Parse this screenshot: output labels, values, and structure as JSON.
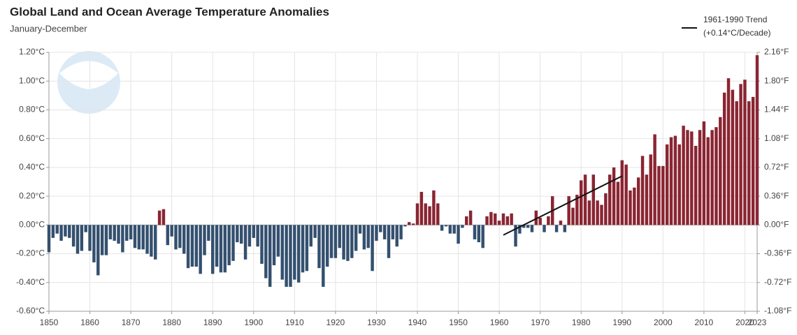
{
  "chart_data": {
    "type": "bar",
    "title": "Global Land and Ocean Average Temperature Anomalies",
    "subtitle": "January-December",
    "x": [
      1850,
      1851,
      1852,
      1853,
      1854,
      1855,
      1856,
      1857,
      1858,
      1859,
      1860,
      1861,
      1862,
      1863,
      1864,
      1865,
      1866,
      1867,
      1868,
      1869,
      1870,
      1871,
      1872,
      1873,
      1874,
      1875,
      1876,
      1877,
      1878,
      1879,
      1880,
      1881,
      1882,
      1883,
      1884,
      1885,
      1886,
      1887,
      1888,
      1889,
      1890,
      1891,
      1892,
      1893,
      1894,
      1895,
      1896,
      1897,
      1898,
      1899,
      1900,
      1901,
      1902,
      1903,
      1904,
      1905,
      1906,
      1907,
      1908,
      1909,
      1910,
      1911,
      1912,
      1913,
      1914,
      1915,
      1916,
      1917,
      1918,
      1919,
      1920,
      1921,
      1922,
      1923,
      1924,
      1925,
      1926,
      1927,
      1928,
      1929,
      1930,
      1931,
      1932,
      1933,
      1934,
      1935,
      1936,
      1937,
      1938,
      1939,
      1940,
      1941,
      1942,
      1943,
      1944,
      1945,
      1946,
      1947,
      1948,
      1949,
      1950,
      1951,
      1952,
      1953,
      1954,
      1955,
      1956,
      1957,
      1958,
      1959,
      1960,
      1961,
      1962,
      1963,
      1964,
      1965,
      1966,
      1967,
      1968,
      1969,
      1970,
      1971,
      1972,
      1973,
      1974,
      1975,
      1976,
      1977,
      1978,
      1979,
      1980,
      1981,
      1982,
      1983,
      1984,
      1985,
      1986,
      1987,
      1988,
      1989,
      1990,
      1991,
      1992,
      1993,
      1994,
      1995,
      1996,
      1997,
      1998,
      1999,
      2000,
      2001,
      2002,
      2003,
      2004,
      2005,
      2006,
      2007,
      2008,
      2009,
      2010,
      2011,
      2012,
      2013,
      2014,
      2015,
      2016,
      2017,
      2018,
      2019,
      2020,
      2021,
      2022,
      2023
    ],
    "values": [
      -0.19,
      -0.09,
      -0.06,
      -0.11,
      -0.08,
      -0.09,
      -0.15,
      -0.2,
      -0.18,
      -0.05,
      -0.18,
      -0.26,
      -0.35,
      -0.21,
      -0.21,
      -0.1,
      -0.11,
      -0.13,
      -0.19,
      -0.11,
      -0.1,
      -0.16,
      -0.17,
      -0.17,
      -0.2,
      -0.22,
      -0.24,
      0.1,
      0.11,
      -0.14,
      -0.08,
      -0.17,
      -0.16,
      -0.2,
      -0.3,
      -0.29,
      -0.29,
      -0.34,
      -0.21,
      -0.11,
      -0.34,
      -0.29,
      -0.33,
      -0.33,
      -0.28,
      -0.25,
      -0.12,
      -0.13,
      -0.24,
      -0.15,
      -0.09,
      -0.15,
      -0.27,
      -0.37,
      -0.43,
      -0.28,
      -0.22,
      -0.38,
      -0.43,
      -0.43,
      -0.38,
      -0.4,
      -0.33,
      -0.32,
      -0.15,
      -0.09,
      -0.3,
      -0.43,
      -0.29,
      -0.23,
      -0.23,
      -0.16,
      -0.24,
      -0.25,
      -0.23,
      -0.18,
      -0.06,
      -0.17,
      -0.16,
      -0.32,
      -0.11,
      -0.05,
      -0.1,
      -0.23,
      -0.1,
      -0.15,
      -0.1,
      -0.01,
      0.02,
      0.01,
      0.15,
      0.23,
      0.15,
      0.13,
      0.24,
      0.15,
      -0.04,
      -0.01,
      -0.06,
      -0.06,
      -0.13,
      -0.02,
      0.06,
      0.1,
      -0.1,
      -0.12,
      -0.16,
      0.06,
      0.09,
      0.08,
      0.03,
      0.08,
      0.06,
      0.08,
      -0.15,
      -0.06,
      -0.02,
      -0.02,
      -0.05,
      0.1,
      0.05,
      -0.05,
      0.06,
      0.2,
      -0.05,
      0.03,
      -0.05,
      0.2,
      0.12,
      0.21,
      0.31,
      0.35,
      0.17,
      0.35,
      0.17,
      0.14,
      0.22,
      0.35,
      0.4,
      0.3,
      0.45,
      0.42,
      0.24,
      0.26,
      0.33,
      0.48,
      0.35,
      0.49,
      0.63,
      0.41,
      0.41,
      0.56,
      0.61,
      0.62,
      0.56,
      0.69,
      0.66,
      0.65,
      0.55,
      0.66,
      0.72,
      0.61,
      0.66,
      0.68,
      0.75,
      0.92,
      1.02,
      0.94,
      0.86,
      0.98,
      1.01,
      0.86,
      0.89,
      1.18
    ],
    "positive_color": "#8a2532",
    "negative_color": "#34506f",
    "trend": {
      "name": "1961-1990 Trend",
      "label": "(+0.14°C/Decade)",
      "color": "#111111",
      "x": [
        1961,
        1990
      ],
      "values": [
        -0.07,
        0.34
      ]
    },
    "legend": "top-right",
    "xlim": [
      1850,
      2023
    ],
    "xticks": [
      1850,
      1860,
      1870,
      1880,
      1890,
      1900,
      1910,
      1920,
      1930,
      1940,
      1950,
      1960,
      1970,
      1980,
      1990,
      2000,
      2010,
      2020,
      2023
    ],
    "ylim": [
      -0.6,
      1.2
    ],
    "yticks": [
      {
        "value": -0.6,
        "label": "-0.60°C"
      },
      {
        "value": -0.4,
        "label": "-0.40°C"
      },
      {
        "value": -0.2,
        "label": "-0.20°C"
      },
      {
        "value": 0,
        "label": "0.00°C"
      },
      {
        "value": 0.2,
        "label": "0.20°C"
      },
      {
        "value": 0.4,
        "label": "0.40°C"
      },
      {
        "value": 0.6,
        "label": "0.60°C"
      },
      {
        "value": 0.8,
        "label": "0.80°C"
      },
      {
        "value": 1.0,
        "label": "1.00°C"
      },
      {
        "value": 1.2,
        "label": "1.20°C"
      }
    ],
    "y2lim": [
      -1.08,
      2.16
    ],
    "y2ticks": [
      {
        "value": -1.08,
        "label": "-1.08°F"
      },
      {
        "value": -0.72,
        "label": "-0.72°F"
      },
      {
        "value": -0.36,
        "label": "-0.36°F"
      },
      {
        "value": 0,
        "label": "0.00°F"
      },
      {
        "value": 0.36,
        "label": "0.36°F"
      },
      {
        "value": 0.72,
        "label": "0.72°F"
      },
      {
        "value": 1.08,
        "label": "1.08°F"
      },
      {
        "value": 1.44,
        "label": "1.44°F"
      },
      {
        "value": 1.8,
        "label": "1.80°F"
      },
      {
        "value": 2.16,
        "label": "2.16°F"
      }
    ],
    "grid": true
  }
}
